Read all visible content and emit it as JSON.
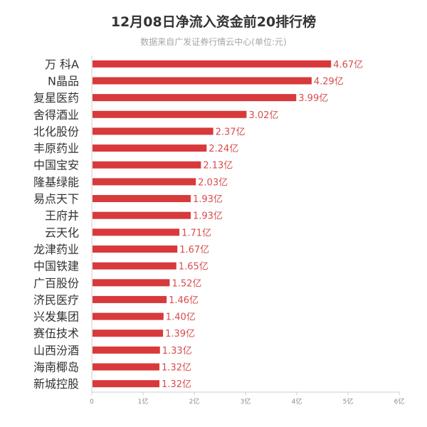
{
  "chart_data": {
    "type": "bar",
    "orientation": "horizontal",
    "title": "12月08日净流入资金前20排行榜",
    "subtitle": "数据来自广发证券行情云中心(单位:元)",
    "categories": [
      "万 科A",
      "N晶品",
      "复星医药",
      "舍得酒业",
      "北化股份",
      "丰原药业",
      "中国宝安",
      "隆基绿能",
      "易点天下",
      "王府井",
      "云天化",
      "龙津药业",
      "中国铁建",
      "广百股份",
      "济民医疗",
      "兴发集团",
      "赛伍技术",
      "山西汾酒",
      "海南椰岛",
      "新城控股"
    ],
    "values": [
      4.67,
      4.29,
      3.99,
      3.02,
      2.37,
      2.24,
      2.13,
      2.03,
      1.93,
      1.93,
      1.71,
      1.67,
      1.65,
      1.52,
      1.46,
      1.4,
      1.39,
      1.33,
      1.32,
      1.32
    ],
    "value_labels": [
      "4.67亿",
      "4.29亿",
      "3.99亿",
      "3.02亿",
      "2.37亿",
      "2.24亿",
      "2.13亿",
      "2.03亿",
      "1.93亿",
      "1.93亿",
      "1.71亿",
      "1.67亿",
      "1.65亿",
      "1.52亿",
      "1.46亿",
      "1.40亿",
      "1.39亿",
      "1.33亿",
      "1.32亿",
      "1.32亿"
    ],
    "xlim": [
      0,
      6
    ],
    "x_ticks": [
      0,
      1,
      2,
      3,
      4,
      5,
      6
    ],
    "x_tick_labels": [
      "0",
      "1亿",
      "2亿",
      "3亿",
      "4亿",
      "5亿",
      "6亿"
    ],
    "grid": false,
    "bar_color": "#d8393b",
    "label_color": "#d84b4b"
  }
}
